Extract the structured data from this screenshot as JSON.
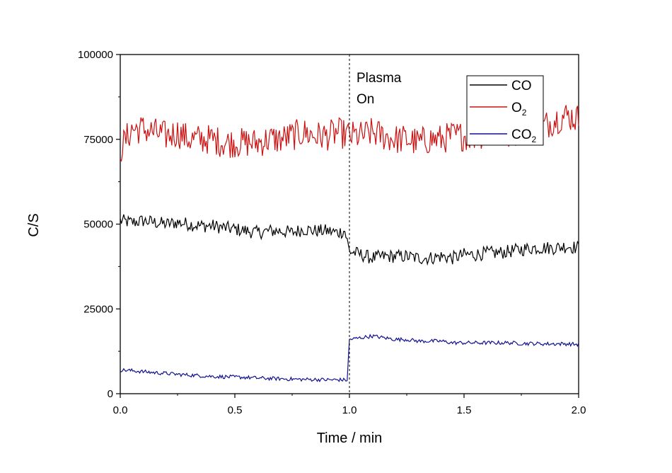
{
  "chart_data": {
    "type": "line",
    "xlabel": "Time /  min",
    "ylabel": "C/S",
    "xlim": [
      0.0,
      2.0
    ],
    "ylim": [
      0,
      100000
    ],
    "x_ticks": [
      0.0,
      0.5,
      1.0,
      1.5,
      2.0
    ],
    "x_tick_labels": [
      "0.0",
      "0.5",
      "1.0",
      "1.5",
      "2.0"
    ],
    "y_ticks": [
      0,
      25000,
      50000,
      75000,
      100000
    ],
    "y_tick_labels": [
      "0",
      "25000",
      "50000",
      "75000",
      "100000"
    ],
    "grid": false,
    "legend_position": "top-right",
    "annotation": {
      "line1": "Plasma",
      "line2": "On",
      "x": 1.0
    },
    "series": [
      {
        "name": "CO",
        "label_main": "CO",
        "label_sub": "",
        "color": "#000000",
        "x": [
          0.0,
          0.05,
          0.1,
          0.15,
          0.2,
          0.25,
          0.3,
          0.35,
          0.4,
          0.45,
          0.5,
          0.55,
          0.6,
          0.65,
          0.7,
          0.75,
          0.8,
          0.85,
          0.9,
          0.95,
          0.98,
          1.0,
          1.05,
          1.1,
          1.15,
          1.2,
          1.25,
          1.3,
          1.35,
          1.4,
          1.45,
          1.5,
          1.55,
          1.6,
          1.65,
          1.7,
          1.75,
          1.8,
          1.85,
          1.9,
          1.95,
          2.0
        ],
        "values": [
          51000,
          50500,
          51000,
          50500,
          50000,
          50500,
          50000,
          49500,
          49500,
          49000,
          48500,
          48000,
          47500,
          48000,
          48000,
          47500,
          48500,
          48000,
          48000,
          47500,
          48000,
          42000,
          41000,
          40000,
          40500,
          40500,
          40500,
          40000,
          40000,
          40500,
          40000,
          41000,
          41000,
          41500,
          41500,
          42000,
          42500,
          43000,
          43000,
          43000,
          43500,
          43000
        ],
        "noise": 2000
      },
      {
        "name": "O2",
        "label_main": "O",
        "label_sub": "2",
        "color": "#cc1111",
        "x": [
          0.0,
          0.05,
          0.1,
          0.15,
          0.2,
          0.25,
          0.3,
          0.35,
          0.4,
          0.45,
          0.5,
          0.55,
          0.6,
          0.65,
          0.7,
          0.75,
          0.8,
          0.85,
          0.9,
          0.95,
          1.0,
          1.05,
          1.1,
          1.15,
          1.2,
          1.25,
          1.3,
          1.35,
          1.4,
          1.45,
          1.5,
          1.55,
          1.6,
          1.65,
          1.7,
          1.75,
          1.8,
          1.85,
          1.9,
          1.95,
          2.0
        ],
        "values": [
          72000,
          78000,
          78000,
          77000,
          76000,
          77000,
          75000,
          75000,
          75000,
          74000,
          74000,
          74000,
          74000,
          75000,
          75000,
          76000,
          77000,
          76000,
          76000,
          77000,
          76000,
          76000,
          77000,
          76000,
          75000,
          75000,
          74000,
          75000,
          75000,
          76000,
          76000,
          76000,
          77000,
          77000,
          77000,
          78000,
          78000,
          79000,
          81000,
          82000,
          81000
        ],
        "noise": 4500
      },
      {
        "name": "CO2",
        "label_main": "CO",
        "label_sub": "2",
        "color": "#101090",
        "x": [
          0.0,
          0.05,
          0.1,
          0.15,
          0.2,
          0.25,
          0.3,
          0.35,
          0.4,
          0.45,
          0.5,
          0.55,
          0.6,
          0.65,
          0.7,
          0.75,
          0.8,
          0.85,
          0.9,
          0.95,
          0.99,
          1.0,
          1.05,
          1.1,
          1.15,
          1.2,
          1.25,
          1.3,
          1.35,
          1.4,
          1.45,
          1.5,
          1.55,
          1.6,
          1.65,
          1.7,
          1.75,
          1.8,
          1.85,
          1.9,
          1.95,
          2.0
        ],
        "values": [
          7000,
          6800,
          6500,
          6200,
          6000,
          5700,
          5500,
          5300,
          5100,
          5000,
          4900,
          4800,
          4600,
          4500,
          4400,
          4300,
          4200,
          4200,
          4100,
          4100,
          4000,
          16000,
          16500,
          17000,
          16500,
          16000,
          16000,
          15500,
          15500,
          15500,
          15000,
          15000,
          15000,
          15000,
          15000,
          15000,
          14800,
          14800,
          14700,
          14700,
          14700,
          14500
        ],
        "noise": 550
      }
    ]
  }
}
